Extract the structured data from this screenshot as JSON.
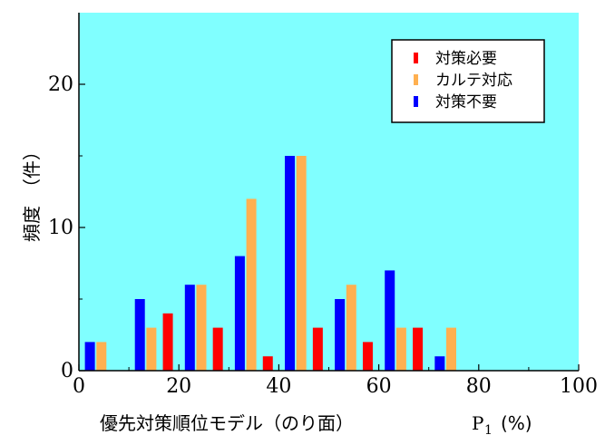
{
  "chart_data": {
    "type": "bar",
    "xlabel": "優先対策順位モデル（のり面）",
    "xlabel_unit": "(%)",
    "xlabel_var": "P",
    "xlabel_sub": "1",
    "ylabel": "頻度　（件）",
    "xlim": [
      0,
      100
    ],
    "ylim": [
      0,
      25
    ],
    "x_ticks": [
      "0",
      "20",
      "40",
      "60",
      "80",
      "100"
    ],
    "y_ticks": [
      "0",
      "10",
      "20"
    ],
    "bin_starts": [
      0,
      10,
      20,
      30,
      40,
      50,
      60,
      70
    ],
    "series": [
      {
        "name": "対策不要",
        "color": "#0000ff",
        "values": [
          2,
          5,
          6,
          8,
          15,
          5,
          7,
          1
        ]
      },
      {
        "name": "カルテ対応",
        "color": "#ffb050",
        "values": [
          2,
          3,
          6,
          12,
          15,
          6,
          3,
          3
        ]
      },
      {
        "name": "対策必要",
        "color": "#ff0000",
        "values": [
          0,
          4,
          3,
          1,
          3,
          2,
          3,
          0
        ]
      }
    ],
    "legend": {
      "position": "top-right",
      "items": [
        "対策必要",
        "カルテ対応",
        "対策不要"
      ]
    },
    "plot_background": "#80ffff",
    "grid": false
  }
}
